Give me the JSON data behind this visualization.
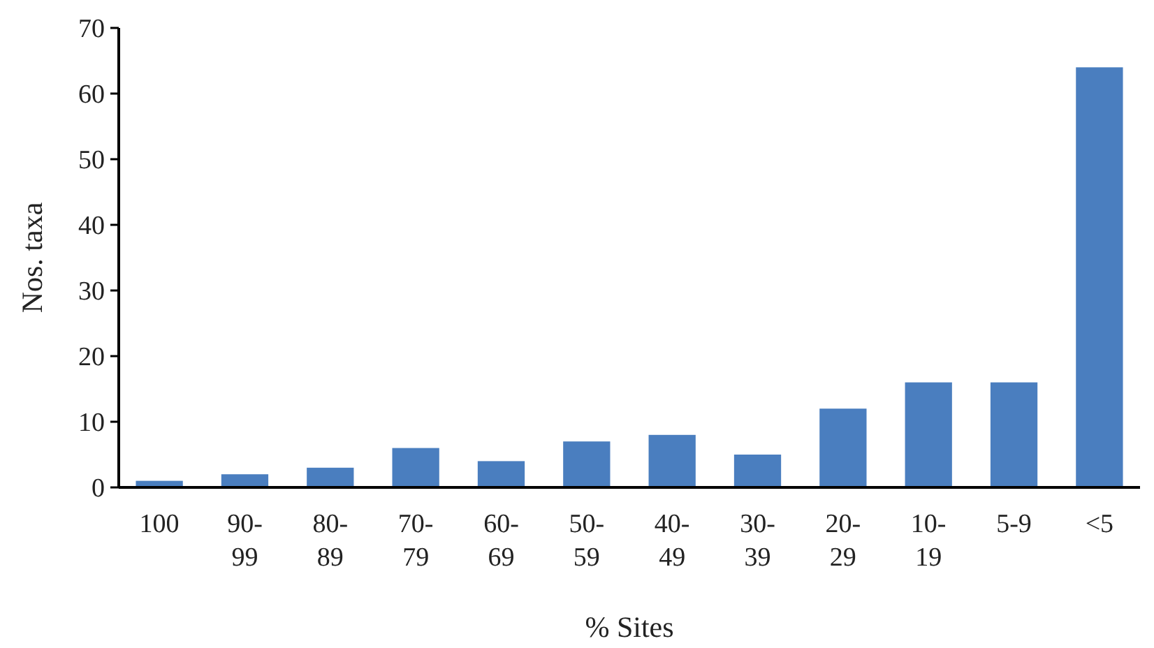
{
  "chart_data": {
    "type": "bar",
    "xlabel": "% Sites",
    "ylabel": "Nos. taxa",
    "categories": [
      "100",
      "90-99",
      "80-89",
      "70-79",
      "60-69",
      "50-59",
      "40-49",
      "30-39",
      "20-29",
      "10-19",
      "5-9",
      "<5"
    ],
    "values": [
      1,
      2,
      3,
      6,
      4,
      7,
      8,
      5,
      12,
      16,
      16,
      64
    ],
    "color": "#4a7ebf",
    "ylim": [
      0,
      70
    ],
    "yticks": [
      0,
      10,
      20,
      30,
      40,
      50,
      60,
      70
    ],
    "grid": false
  }
}
